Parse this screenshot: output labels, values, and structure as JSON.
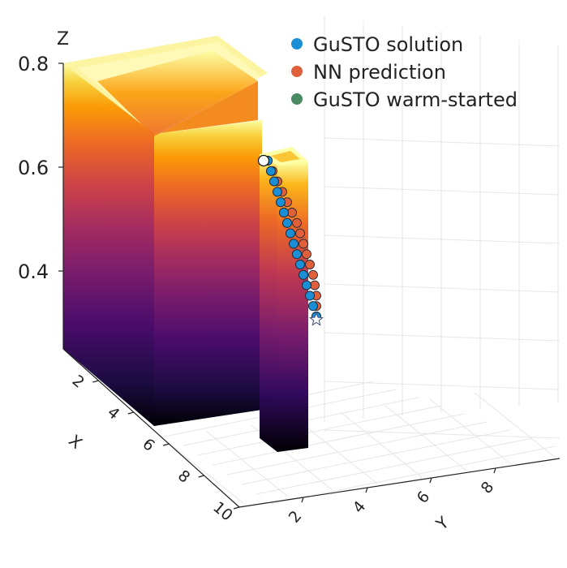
{
  "chart_data": {
    "type": "scatter",
    "projection": "3d",
    "axes": {
      "x": {
        "label": "X",
        "ticks": [
          2,
          4,
          6,
          8,
          10
        ],
        "range": [
          0,
          10
        ]
      },
      "y": {
        "label": "Y",
        "ticks": [
          2,
          4,
          6,
          8
        ],
        "range": [
          0,
          10
        ]
      },
      "z": {
        "label": "Z",
        "ticks": [
          0.4,
          0.6,
          0.8
        ],
        "range": [
          0.25,
          0.8
        ]
      }
    },
    "legend_position": "top-right",
    "colormap": "inferno",
    "series": [
      {
        "name": "GuSTO solution",
        "color": "#1a8fd6",
        "points": [
          [
            8.9,
            0.4,
            0.55
          ],
          [
            8.9,
            0.42,
            0.53
          ],
          [
            8.9,
            0.44,
            0.51
          ],
          [
            8.9,
            0.46,
            0.49
          ],
          [
            8.9,
            0.48,
            0.47
          ],
          [
            8.9,
            0.5,
            0.45
          ],
          [
            8.9,
            0.52,
            0.43
          ],
          [
            8.9,
            0.54,
            0.41
          ],
          [
            8.9,
            0.56,
            0.39
          ],
          [
            8.9,
            0.58,
            0.37
          ],
          [
            8.9,
            0.6,
            0.35
          ],
          [
            8.9,
            0.62,
            0.33
          ],
          [
            8.9,
            0.64,
            0.31
          ],
          [
            8.9,
            0.66,
            0.29
          ],
          [
            8.9,
            0.68,
            0.27
          ],
          [
            8.9,
            0.7,
            0.25
          ]
        ]
      },
      {
        "name": "NN prediction",
        "color": "#e0603a",
        "points": [
          [
            8.9,
            0.4,
            0.55
          ],
          [
            8.9,
            0.43,
            0.53
          ],
          [
            8.9,
            0.46,
            0.51
          ],
          [
            8.9,
            0.49,
            0.49
          ],
          [
            8.9,
            0.52,
            0.47
          ],
          [
            8.9,
            0.55,
            0.45
          ],
          [
            8.9,
            0.58,
            0.43
          ],
          [
            8.9,
            0.6,
            0.41
          ],
          [
            8.9,
            0.62,
            0.39
          ],
          [
            8.9,
            0.64,
            0.37
          ],
          [
            8.9,
            0.66,
            0.35
          ],
          [
            8.9,
            0.68,
            0.33
          ],
          [
            8.9,
            0.69,
            0.31
          ],
          [
            8.9,
            0.7,
            0.29
          ],
          [
            8.9,
            0.7,
            0.27
          ],
          [
            8.9,
            0.7,
            0.25
          ]
        ]
      },
      {
        "name": "GuSTO warm-started",
        "color": "#4a8a62",
        "points": [
          [
            8.9,
            0.4,
            0.55
          ],
          [
            8.9,
            0.42,
            0.53
          ],
          [
            8.9,
            0.44,
            0.51
          ],
          [
            8.9,
            0.46,
            0.49
          ],
          [
            8.9,
            0.48,
            0.47
          ],
          [
            8.9,
            0.5,
            0.45
          ],
          [
            8.9,
            0.52,
            0.43
          ],
          [
            8.9,
            0.54,
            0.41
          ],
          [
            8.9,
            0.56,
            0.39
          ],
          [
            8.9,
            0.58,
            0.37
          ],
          [
            8.9,
            0.6,
            0.35
          ],
          [
            8.9,
            0.62,
            0.33
          ],
          [
            8.9,
            0.64,
            0.31
          ],
          [
            8.9,
            0.66,
            0.29
          ],
          [
            8.9,
            0.68,
            0.27
          ],
          [
            8.9,
            0.7,
            0.25
          ]
        ]
      }
    ],
    "obstacles": [
      {
        "name": "large-block",
        "x_range": [
          0,
          6
        ],
        "y_range": [
          0,
          4
        ],
        "z_range": [
          0.2,
          0.8
        ],
        "hollow_top": true
      },
      {
        "name": "thin-pillar",
        "x_range": [
          6,
          9
        ],
        "y_range": [
          0,
          0.6
        ],
        "z_range": [
          0.2,
          0.6
        ],
        "hollow_top": true
      }
    ],
    "start_marker": {
      "shape": "circle",
      "color": "#ffffff"
    },
    "goal_marker": {
      "shape": "star",
      "color": "#ffffff"
    }
  }
}
